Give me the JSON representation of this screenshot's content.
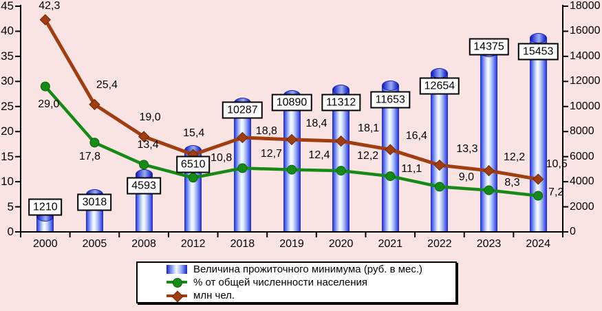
{
  "chart_data": {
    "type": "bar",
    "subtype": "combo-bar-line-dual-axis",
    "background": "#fae3e3",
    "grid": false,
    "legend_position": "bottom",
    "decimal_separator": ",",
    "categories": [
      "2000",
      "2005",
      "2008",
      "2012",
      "2018",
      "2019",
      "2020",
      "2021",
      "2022",
      "2023",
      "2024"
    ],
    "series": [
      {
        "name": "Величина прожиточного минимума (руб. в мес.)",
        "type": "bar",
        "axis": "right",
        "color": "#2230d8",
        "values": [
          1210,
          3018,
          4593,
          6510,
          10287,
          10890,
          11312,
          11653,
          12654,
          14375,
          15453
        ],
        "labels": [
          "1210",
          "3018",
          "4593",
          "6510",
          "10287",
          "10890",
          "11312",
          "11653",
          "12654",
          "14375",
          "15453"
        ]
      },
      {
        "name": "% от общей численности населения",
        "type": "line",
        "marker": "circle",
        "axis": "left",
        "color": "#168a16",
        "marker_edge_color": "#0a640a",
        "values": [
          29.0,
          17.8,
          13.4,
          10.8,
          12.7,
          12.4,
          12.2,
          11.1,
          9.0,
          8.3,
          7.2
        ],
        "labels": [
          "29,0",
          "17,8",
          "13,4",
          "10,8",
          "12,7",
          "12,4",
          "12,2",
          "11,1",
          "9,0",
          "8,3",
          "7,2"
        ]
      },
      {
        "name": "млн чел.",
        "type": "line",
        "marker": "diamond",
        "axis": "left",
        "color": "#a03e10",
        "marker_edge_color": "#6e2706",
        "values": [
          42.3,
          25.4,
          19.0,
          15.4,
          18.8,
          18.4,
          18.1,
          16.4,
          13.3,
          12.2,
          10.5
        ],
        "labels": [
          "42,3",
          "25,4",
          "19,0",
          "15,4",
          "18,8",
          "18,4",
          "18,1",
          "16,4",
          "13,3",
          "12,2",
          "10,5"
        ]
      }
    ],
    "left_axis": {
      "min": 0,
      "max": 45,
      "step": 5,
      "ticks": [
        "0",
        "5",
        "10",
        "15",
        "20",
        "25",
        "30",
        "35",
        "40",
        "45"
      ]
    },
    "right_axis": {
      "min": 0,
      "max": 18000,
      "step": 2000,
      "ticks": [
        "0",
        "2000",
        "4000",
        "6000",
        "8000",
        "10000",
        "12000",
        "14000",
        "16000",
        "18000"
      ]
    }
  },
  "legend": {
    "items": [
      {
        "label": "Величина прожиточного минимума (руб. в мес.)"
      },
      {
        "label": "% от общей численности населения"
      },
      {
        "label": "млн чел."
      }
    ]
  }
}
